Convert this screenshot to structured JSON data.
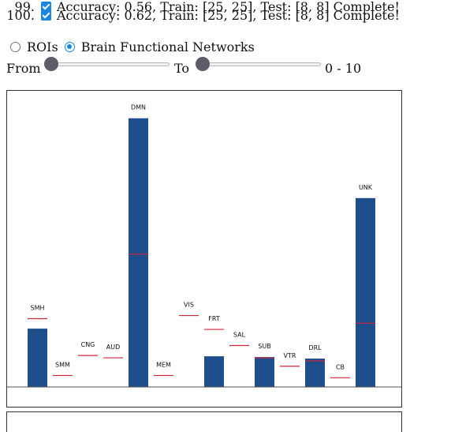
{
  "results": [
    {
      "index": "99.",
      "checked": true,
      "text": "Accuracy: 0.56, Train: [25, 25], Test: [8, 8] Complete!"
    },
    {
      "index": "100.",
      "checked": true,
      "text": "Accuracy: 0.62, Train: [25, 25], Test: [8, 8] Complete!"
    }
  ],
  "view_mode": {
    "options": [
      {
        "label": "ROIs",
        "selected": false
      },
      {
        "label": "Brain Functional Networks",
        "selected": true
      }
    ]
  },
  "range": {
    "from_label": "From",
    "to_label": "To",
    "from_value": 0,
    "to_value": 0,
    "display": "0 - 10"
  },
  "colors": {
    "bar": "#1f4e8c",
    "reference_line": "#d6243a",
    "axis": "#555555",
    "accent": "#1a86e0"
  },
  "chart_data": {
    "type": "bar",
    "categories": [
      "SMH",
      "SMM",
      "CNG",
      "AUD",
      "DMN",
      "MEM",
      "VIS",
      "FRT",
      "SAL",
      "SUB",
      "VTR",
      "DRL",
      "CB",
      "UNK"
    ],
    "values": [
      76,
      0,
      0,
      0,
      350,
      0,
      0,
      40,
      0,
      39,
      0,
      37,
      0,
      246
    ],
    "reference": [
      89,
      15,
      41,
      38,
      173,
      15,
      93,
      75,
      54,
      38,
      27,
      34,
      12,
      83
    ],
    "ylim": [
      0,
      360
    ],
    "grid": false,
    "legend": "none"
  }
}
